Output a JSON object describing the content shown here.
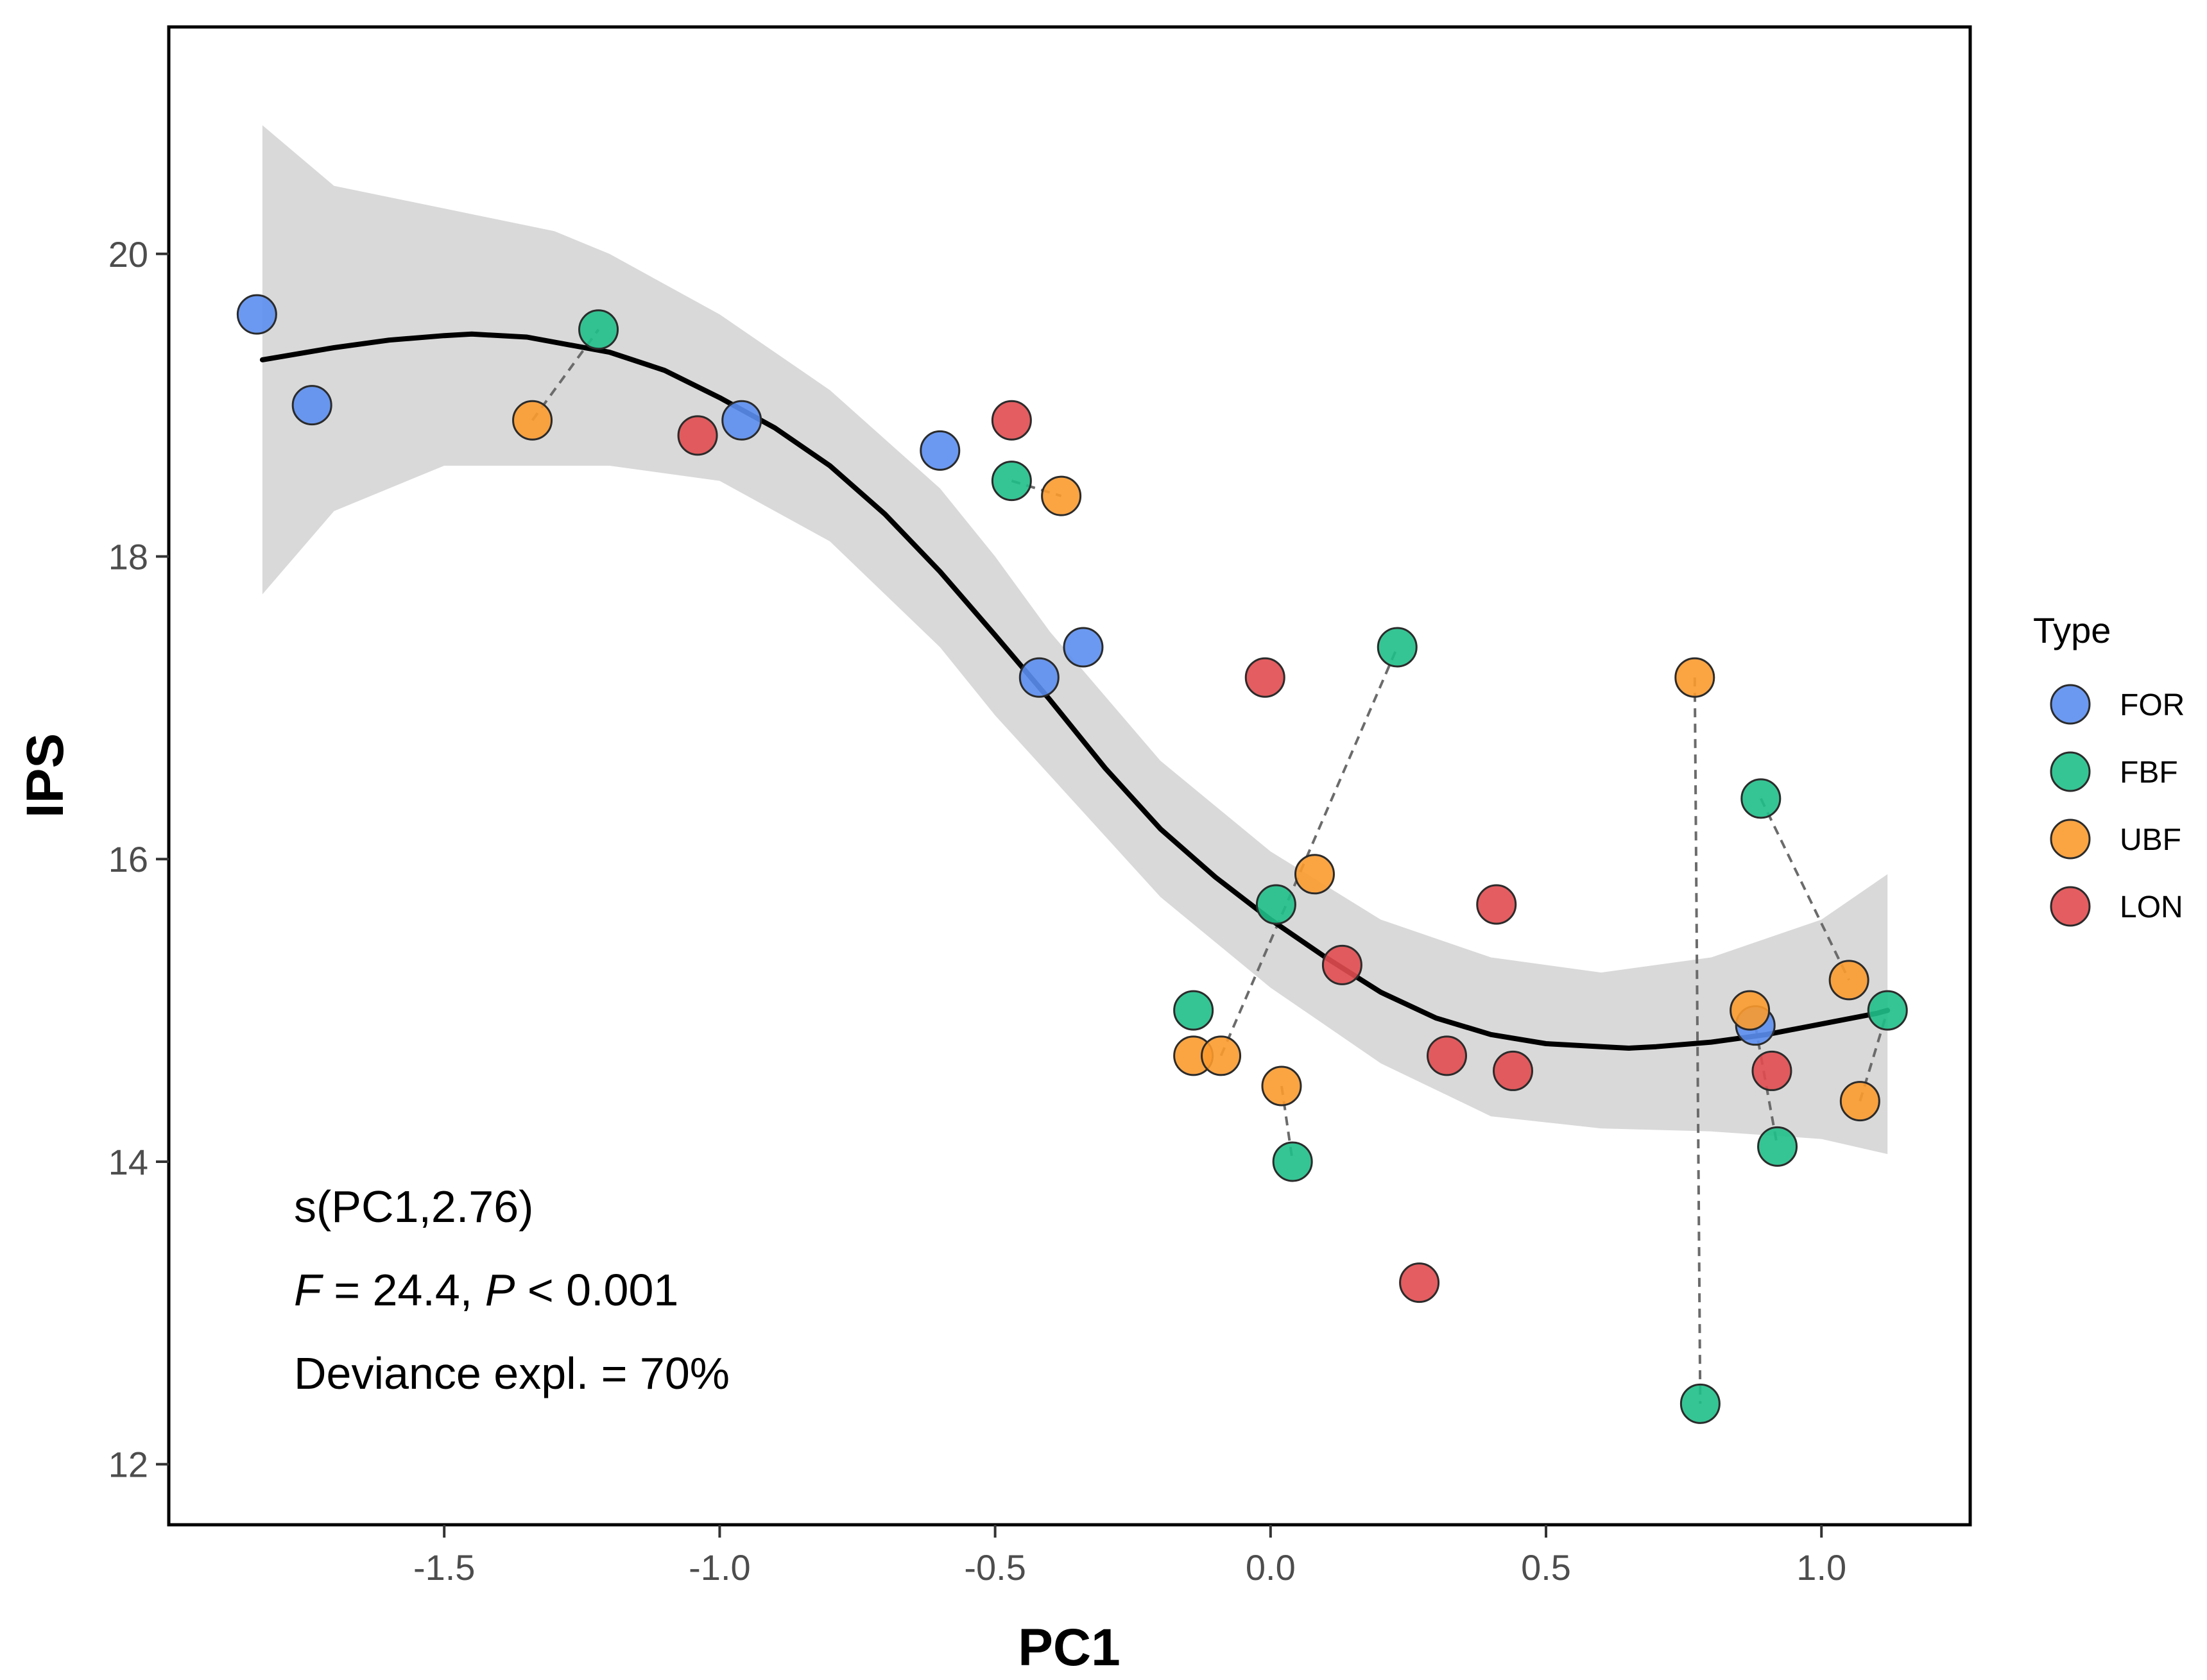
{
  "chart_data": {
    "type": "scatter",
    "xlabel": "PC1",
    "ylabel": "IPS",
    "xlim": [
      -2.0,
      1.27
    ],
    "ylim": [
      11.6,
      21.5
    ],
    "x_ticks": [
      "-1.5",
      "-1.0",
      "-0.5",
      "0.0",
      "0.5",
      "1.0"
    ],
    "x_tick_values": [
      -1.5,
      -1.0,
      -0.5,
      0.0,
      0.5,
      1.0
    ],
    "y_ticks": [
      "12",
      "14",
      "16",
      "18",
      "20"
    ],
    "y_tick_values": [
      12,
      14,
      16,
      18,
      20
    ],
    "grid": false,
    "legend": {
      "title": "Type",
      "position": "right",
      "entries": [
        {
          "label": "FOR",
          "color": "#5b8ef0"
        },
        {
          "label": "FBF",
          "color": "#1fbf8a"
        },
        {
          "label": "UBF",
          "color": "#fb9a2d"
        },
        {
          "label": "LON",
          "color": "#e14b4f"
        }
      ]
    },
    "annotation": {
      "line1": "s(PC1,2.76)",
      "f_label": "F",
      "f_text": " = 24.4, ",
      "p_label": "P",
      "p_text": " < 0.001",
      "line3": "Deviance expl. = 70%"
    },
    "smooth_fit": {
      "x": [
        -1.83,
        -1.7,
        -1.6,
        -1.5,
        -1.45,
        -1.35,
        -1.2,
        -1.1,
        -1.0,
        -0.9,
        -0.8,
        -0.7,
        -0.6,
        -0.5,
        -0.4,
        -0.3,
        -0.2,
        -0.1,
        0.0,
        0.1,
        0.2,
        0.3,
        0.4,
        0.5,
        0.6,
        0.65,
        0.7,
        0.8,
        0.9,
        1.0,
        1.1,
        1.12
      ],
      "y": [
        19.3,
        19.38,
        19.43,
        19.46,
        19.47,
        19.45,
        19.35,
        19.23,
        19.05,
        18.85,
        18.6,
        18.28,
        17.9,
        17.48,
        17.05,
        16.6,
        16.2,
        15.88,
        15.6,
        15.35,
        15.12,
        14.95,
        14.84,
        14.78,
        14.76,
        14.75,
        14.76,
        14.79,
        14.84,
        14.91,
        14.98,
        15.0
      ]
    },
    "confidence_band": {
      "x": [
        -1.83,
        -1.7,
        -1.5,
        -1.3,
        -1.2,
        -1.0,
        -0.8,
        -0.6,
        -0.5,
        -0.4,
        -0.2,
        0.0,
        0.2,
        0.4,
        0.6,
        0.8,
        1.0,
        1.12
      ],
      "upper": [
        20.85,
        20.45,
        20.3,
        20.15,
        20.0,
        19.6,
        19.1,
        18.45,
        18.0,
        17.5,
        16.65,
        16.05,
        15.6,
        15.35,
        15.25,
        15.35,
        15.6,
        15.9
      ],
      "lower": [
        17.75,
        18.3,
        18.6,
        18.6,
        18.6,
        18.5,
        18.1,
        17.4,
        16.95,
        16.55,
        15.75,
        15.15,
        14.65,
        14.3,
        14.22,
        14.2,
        14.15,
        14.05
      ]
    },
    "series": [
      {
        "name": "FOR",
        "x": [
          -1.84,
          -1.74,
          -0.96,
          -0.6,
          -0.42,
          -0.34,
          0.88
        ],
        "y": [
          19.6,
          19.0,
          18.9,
          18.7,
          17.2,
          17.4,
          14.9
        ]
      },
      {
        "name": "FBF",
        "x": [
          -1.22,
          -0.47,
          -0.14,
          0.01,
          0.04,
          0.23,
          0.78,
          0.89,
          0.92,
          1.12
        ],
        "y": [
          19.5,
          18.5,
          15.0,
          15.7,
          14.0,
          17.4,
          12.4,
          16.4,
          14.1,
          15.0
        ]
      },
      {
        "name": "UBF",
        "x": [
          -1.34,
          -0.38,
          -0.14,
          -0.09,
          0.02,
          0.08,
          0.77,
          0.87,
          1.05,
          1.07
        ],
        "y": [
          18.9,
          18.4,
          14.7,
          14.7,
          14.5,
          15.9,
          17.2,
          15.0,
          15.2,
          14.4
        ]
      },
      {
        "name": "LON",
        "x": [
          -1.04,
          -0.47,
          -0.01,
          0.13,
          0.27,
          0.32,
          0.41,
          0.44,
          0.91
        ],
        "y": [
          18.8,
          18.9,
          17.2,
          15.3,
          13.2,
          14.7,
          15.7,
          14.6,
          14.6
        ]
      }
    ],
    "paired_links": [
      {
        "from": [
          -1.34,
          18.9
        ],
        "to": [
          -1.22,
          19.5
        ]
      },
      {
        "from": [
          -0.47,
          18.5
        ],
        "to": [
          -0.38,
          18.4
        ]
      },
      {
        "from": [
          -0.09,
          14.7
        ],
        "to": [
          0.23,
          17.4
        ]
      },
      {
        "from": [
          0.02,
          14.5
        ],
        "to": [
          0.04,
          14.0
        ]
      },
      {
        "from": [
          0.77,
          17.2
        ],
        "to": [
          0.78,
          12.4
        ]
      },
      {
        "from": [
          0.89,
          16.4
        ],
        "to": [
          1.05,
          15.2
        ]
      },
      {
        "from": [
          0.88,
          14.9
        ],
        "to": [
          0.92,
          14.1
        ]
      },
      {
        "from": [
          1.07,
          14.4
        ],
        "to": [
          1.12,
          15.0
        ]
      }
    ]
  }
}
